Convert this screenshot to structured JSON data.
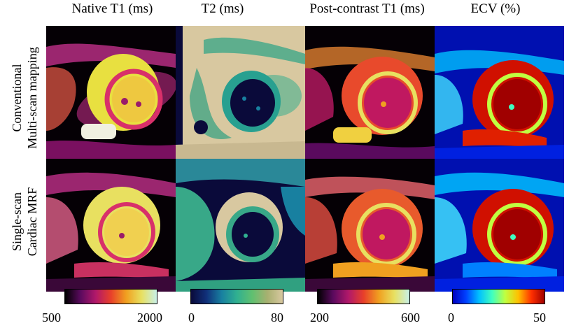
{
  "columns": [
    "Native T1 (ms)",
    "T2 (ms)",
    "Post-contrast T1 (ms)",
    "ECV (%)"
  ],
  "rows": [
    {
      "line1": "Conventional",
      "line2": "Multi-scan mapping"
    },
    {
      "line1": "Single-scan",
      "line2": "Cardiac MRF"
    }
  ],
  "colorbars": [
    {
      "min": "500",
      "max": "2000",
      "colormap": "hot-magenta-to-white",
      "stops": [
        "#000000",
        "#5a0a5e",
        "#b0186a",
        "#e8402a",
        "#f0a020",
        "#e8e060",
        "#c8f0e8"
      ]
    },
    {
      "min": "0",
      "max": "80",
      "colormap": "navy-teal-tan",
      "stops": [
        "#0a0a3a",
        "#10307a",
        "#1880a0",
        "#30b090",
        "#60c070",
        "#a8b070",
        "#d8c8a0"
      ]
    },
    {
      "min": "200",
      "max": "600",
      "colormap": "hot-magenta-to-white",
      "stops": [
        "#000000",
        "#5a0a5e",
        "#b0186a",
        "#e8402a",
        "#f0a020",
        "#e8e060",
        "#c8f0e8"
      ]
    },
    {
      "min": "0",
      "max": "50",
      "colormap": "jet",
      "stops": [
        "#0000c0",
        "#0040ff",
        "#00c0ff",
        "#40ffc0",
        "#c0ff40",
        "#ffc000",
        "#ff3000",
        "#a00000"
      ]
    }
  ]
}
